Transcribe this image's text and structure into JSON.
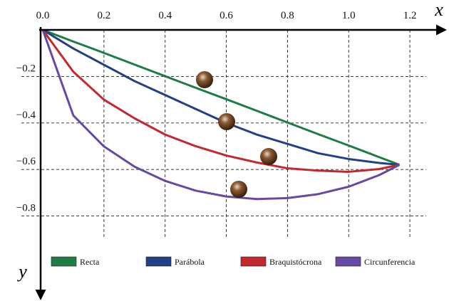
{
  "chart_data": {
    "type": "line",
    "x_label": "x",
    "y_label": "y",
    "x": [
      0,
      0.1,
      0.2,
      0.3,
      0.4,
      0.5,
      0.6,
      0.7,
      0.8,
      0.9,
      1.0,
      1.1,
      1.166
    ],
    "series": [
      {
        "name": "Recta",
        "color": "#1e7d45",
        "values": [
          0,
          -0.05,
          -0.099,
          -0.149,
          -0.199,
          -0.249,
          -0.298,
          -0.348,
          -0.398,
          -0.448,
          -0.497,
          -0.547,
          -0.58
        ]
      },
      {
        "name": "Parábola",
        "color": "#233f86",
        "values": [
          0,
          -0.08,
          -0.15,
          -0.22,
          -0.28,
          -0.34,
          -0.4,
          -0.45,
          -0.49,
          -0.53,
          -0.555,
          -0.572,
          -0.58
        ]
      },
      {
        "name": "Braquistócrona",
        "color": "#c4282f",
        "values": [
          0,
          -0.18,
          -0.3,
          -0.38,
          -0.45,
          -0.5,
          -0.54,
          -0.57,
          -0.595,
          -0.605,
          -0.61,
          -0.598,
          -0.58
        ]
      },
      {
        "name": "Circunferencia",
        "color": "#6549a2",
        "values": [
          0,
          -0.368,
          -0.501,
          -0.588,
          -0.649,
          -0.691,
          -0.716,
          -0.727,
          -0.723,
          -0.706,
          -0.674,
          -0.624,
          -0.58
        ]
      }
    ],
    "xlim": [
      0,
      1.3
    ],
    "ylim": [
      -1.15,
      0
    ],
    "xticks": [
      {
        "value": 0,
        "label": "0.0"
      },
      0.2,
      0.4,
      0.6,
      0.8,
      {
        "value": 1,
        "label": "1.0"
      },
      1.2
    ],
    "yticks": [
      {
        "value": -0.2,
        "label": "−0.2"
      },
      {
        "value": -0.4,
        "label": "−0.4"
      },
      {
        "value": -0.6,
        "label": "−0.6"
      },
      {
        "value": -0.8,
        "label": "−0.8"
      }
    ],
    "grid": true
  }
}
